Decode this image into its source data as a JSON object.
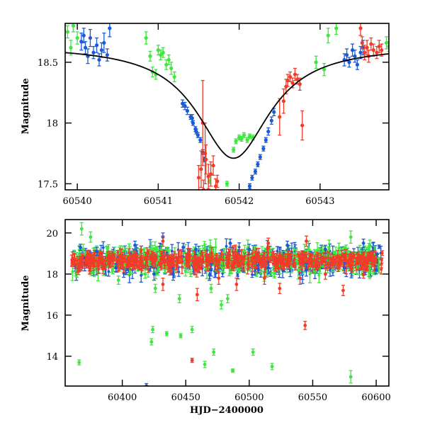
{
  "colors": {
    "blue": "#1a5ad6",
    "red": "#f03c28",
    "green": "#3ee63e",
    "model": "#000000",
    "frame": "#000000"
  },
  "chart_data": [
    {
      "type": "scatter",
      "ylabel": "Magnitude",
      "xlabel": "",
      "xlim": [
        60539.85,
        60543.85
      ],
      "ylim": [
        18.82,
        17.45
      ],
      "y_inverted": true,
      "x_ticks": [
        60540,
        60541,
        60542,
        60543
      ],
      "x_tick_labels": [
        "60540",
        "60541",
        "60542",
        "60543"
      ],
      "y_ticks": [
        17.5,
        18,
        18.5
      ],
      "y_tick_labels": [
        "17.5",
        "18",
        "18.5"
      ],
      "model_curve": {
        "type": "line",
        "peak_x": 60541.93,
        "peak_mag": 17.71,
        "base_mag": 18.64,
        "halfwidth": 0.55
      },
      "series": [
        {
          "color_key": "blue",
          "points": [
            [
              60540.05,
              18.67,
              0.07
            ],
            [
              60540.08,
              18.72,
              0.06
            ],
            [
              60540.1,
              18.62,
              0.05
            ],
            [
              60540.13,
              18.55,
              0.06
            ],
            [
              60540.16,
              18.7,
              0.07
            ],
            [
              60540.2,
              18.58,
              0.05
            ],
            [
              60540.24,
              18.64,
              0.06
            ],
            [
              60540.27,
              18.52,
              0.05
            ],
            [
              60540.3,
              18.6,
              0.06
            ],
            [
              60540.33,
              18.66,
              0.08
            ],
            [
              60540.37,
              18.56,
              0.05
            ],
            [
              60540.4,
              18.78,
              0.07
            ],
            [
              60541.3,
              18.16,
              0.03
            ],
            [
              60541.33,
              18.14,
              0.03
            ],
            [
              60541.36,
              18.1,
              0.03
            ],
            [
              60541.4,
              18.05,
              0.02
            ],
            [
              60541.43,
              18.0,
              0.02
            ],
            [
              60541.46,
              17.95,
              0.02
            ],
            [
              60541.49,
              17.9,
              0.02
            ],
            [
              60541.52,
              17.86,
              0.02
            ],
            [
              60541.42,
              18.04,
              0.03
            ],
            [
              60541.47,
              17.93,
              0.02
            ],
            [
              60541.55,
              17.76,
              0.02
            ],
            [
              60541.57,
              17.7,
              0.02
            ],
            [
              60542.13,
              17.48,
              0.02
            ],
            [
              60542.16,
              17.55,
              0.02
            ],
            [
              60542.2,
              17.6,
              0.02
            ],
            [
              60542.23,
              17.66,
              0.02
            ],
            [
              60542.26,
              17.72,
              0.02
            ],
            [
              60542.3,
              17.79,
              0.02
            ],
            [
              60542.33,
              17.86,
              0.02
            ],
            [
              60542.36,
              17.93,
              0.03
            ],
            [
              60542.4,
              18.02,
              0.03
            ],
            [
              60542.43,
              18.09,
              0.03
            ],
            [
              60543.3,
              18.52,
              0.05
            ],
            [
              60543.33,
              18.56,
              0.05
            ],
            [
              60543.36,
              18.5,
              0.04
            ],
            [
              60543.4,
              18.6,
              0.05
            ],
            [
              60543.43,
              18.55,
              0.05
            ],
            [
              60543.46,
              18.48,
              0.04
            ],
            [
              60543.5,
              18.58,
              0.05
            ],
            [
              60543.53,
              18.62,
              0.06
            ]
          ]
        },
        {
          "color_key": "green",
          "points": [
            [
              60539.88,
              18.75,
              0.05
            ],
            [
              60539.92,
              18.62,
              0.06
            ],
            [
              60539.95,
              18.8,
              0.05
            ],
            [
              60540.0,
              18.7,
              0.05
            ],
            [
              60540.85,
              18.7,
              0.05
            ],
            [
              60540.9,
              18.55,
              0.04
            ],
            [
              60540.93,
              18.42,
              0.04
            ],
            [
              60540.97,
              18.4,
              0.04
            ],
            [
              60541.0,
              18.6,
              0.04
            ],
            [
              60541.03,
              18.56,
              0.04
            ],
            [
              60541.06,
              18.58,
              0.04
            ],
            [
              60541.1,
              18.48,
              0.04
            ],
            [
              60541.13,
              18.52,
              0.04
            ],
            [
              60541.16,
              18.45,
              0.05
            ],
            [
              60541.2,
              18.38,
              0.04
            ],
            [
              60541.63,
              17.52,
              0.02
            ],
            [
              60541.93,
              17.78,
              0.02
            ],
            [
              60541.96,
              17.85,
              0.02
            ],
            [
              60542.0,
              17.88,
              0.02
            ],
            [
              60542.03,
              17.87,
              0.02
            ],
            [
              60542.06,
              17.9,
              0.02
            ],
            [
              60542.1,
              17.86,
              0.02
            ],
            [
              60542.13,
              17.89,
              0.02
            ],
            [
              60542.17,
              17.88,
              0.02
            ],
            [
              60541.85,
              17.5,
              0.02
            ],
            [
              60542.95,
              18.5,
              0.05
            ],
            [
              60543.05,
              18.44,
              0.05
            ],
            [
              60543.1,
              18.72,
              0.06
            ],
            [
              60543.2,
              18.78,
              0.05
            ],
            [
              60543.82,
              18.66,
              0.05
            ],
            [
              60543.85,
              18.63,
              0.04
            ]
          ]
        },
        {
          "color_key": "red",
          "points": [
            [
              60541.5,
              17.55,
              0.1
            ],
            [
              60541.53,
              17.62,
              0.15
            ],
            [
              60541.56,
              17.45,
              0.08
            ],
            [
              60541.59,
              17.7,
              0.12
            ],
            [
              60541.62,
              17.56,
              0.1
            ],
            [
              60541.65,
              17.58,
              0.1
            ],
            [
              60541.68,
              17.65,
              0.08
            ],
            [
              60541.71,
              17.48,
              0.06
            ],
            [
              60541.73,
              17.52,
              0.05
            ],
            [
              60541.55,
              18.0,
              0.35
            ],
            [
              60541.58,
              17.75,
              0.25
            ],
            [
              60542.5,
              18.05,
              0.15
            ],
            [
              60542.55,
              18.18,
              0.1
            ],
            [
              60542.58,
              18.3,
              0.06
            ],
            [
              60542.6,
              18.35,
              0.05
            ],
            [
              60542.63,
              18.38,
              0.04
            ],
            [
              60542.66,
              18.33,
              0.04
            ],
            [
              60542.69,
              18.4,
              0.05
            ],
            [
              60542.72,
              18.36,
              0.04
            ],
            [
              60542.75,
              18.32,
              0.05
            ],
            [
              60542.78,
              17.98,
              0.12
            ],
            [
              60543.55,
              18.58,
              0.06
            ],
            [
              60543.58,
              18.62,
              0.06
            ],
            [
              60543.6,
              18.55,
              0.05
            ],
            [
              60543.63,
              18.65,
              0.05
            ],
            [
              60543.66,
              18.6,
              0.05
            ],
            [
              60543.7,
              18.58,
              0.05
            ],
            [
              60543.73,
              18.63,
              0.05
            ],
            [
              60543.76,
              18.6,
              0.05
            ],
            [
              60543.5,
              18.78,
              0.06
            ],
            [
              60543.52,
              18.66,
              0.05
            ]
          ]
        }
      ]
    },
    {
      "type": "scatter",
      "ylabel": "Magnitude",
      "xlabel": "HJD−2400000",
      "xlim": [
        60355,
        60610
      ],
      "ylim": [
        20.65,
        12.55
      ],
      "y_inverted": true,
      "x_ticks": [
        60400,
        60450,
        60500,
        60550,
        60600
      ],
      "x_tick_labels": [
        "60400",
        "60450",
        "60500",
        "60550",
        "60600"
      ],
      "y_ticks": [
        14,
        16,
        18,
        20
      ],
      "y_tick_labels": [
        "14",
        "16",
        "18",
        "20"
      ],
      "baseline_mag": 18.65,
      "x_start": 60360,
      "x_end": 60605,
      "series": [
        {
          "color_key": "blue",
          "points": [
            [
              60419,
              12.55,
              0.12
            ],
            [
              60367,
              19.3,
              0.15
            ],
            [
              60380,
              19.1,
              0.2
            ],
            [
              60395,
              18.3,
              0.2
            ],
            [
              60410,
              19.4,
              0.2
            ],
            [
              60425,
              18.0,
              0.3
            ],
            [
              60432,
              19.8,
              0.2
            ],
            [
              60440,
              18.0,
              0.3
            ],
            [
              60448,
              19.3,
              0.2
            ],
            [
              60458,
              19.2,
              0.25
            ],
            [
              60470,
              18.2,
              0.3
            ],
            [
              60485,
              19.5,
              0.2
            ],
            [
              60500,
              19.2,
              0.25
            ],
            [
              60515,
              18.3,
              0.3
            ],
            [
              60530,
              19.4,
              0.2
            ],
            [
              60545,
              18.2,
              0.3
            ],
            [
              60560,
              19.2,
              0.2
            ],
            [
              60575,
              18.3,
              0.25
            ],
            [
              60590,
              19.5,
              0.2
            ],
            [
              60600,
              18.2,
              0.2
            ]
          ]
        },
        {
          "color_key": "green",
          "points": [
            [
              60366,
              13.7,
              0.12
            ],
            [
              60423,
              14.7,
              0.15
            ],
            [
              60424,
              15.3,
              0.15
            ],
            [
              60435,
              15.1,
              0.1
            ],
            [
              60446,
              15.0,
              0.1
            ],
            [
              60455,
              15.3,
              0.15
            ],
            [
              60465,
              13.6,
              0.15
            ],
            [
              60472,
              14.2,
              0.15
            ],
            [
              60487,
              13.3,
              0.08
            ],
            [
              60503,
              14.2,
              0.15
            ],
            [
              60518,
              13.5,
              0.15
            ],
            [
              60580,
              13.0,
              0.3
            ],
            [
              60418,
              18.0,
              0.2
            ],
            [
              60426,
              17.3,
              0.2
            ],
            [
              60445,
              16.8,
              0.2
            ],
            [
              60478,
              16.5,
              0.2
            ],
            [
              60483,
              16.8,
              0.2
            ],
            [
              60375,
              19.8,
              0.25
            ],
            [
              60368,
              20.2,
              0.3
            ],
            [
              60397,
              17.7,
              0.2
            ],
            [
              60580,
              19.8,
              0.3
            ],
            [
              60595,
              19.4,
              0.25
            ],
            [
              60470,
              17.3,
              0.2
            ]
          ]
        },
        {
          "color_key": "red",
          "points": [
            [
              60455,
              13.8,
              0.1
            ],
            [
              60544,
              15.5,
              0.2
            ],
            [
              60432,
              17.5,
              0.3
            ],
            [
              60459,
              17.0,
              0.3
            ],
            [
              60476,
              17.8,
              0.3
            ],
            [
              60490,
              17.5,
              0.3
            ],
            [
              60512,
              17.8,
              0.3
            ],
            [
              60524,
              17.3,
              0.25
            ],
            [
              60540,
              17.8,
              0.3
            ],
            [
              60560,
              18.0,
              0.25
            ],
            [
              60574,
              17.2,
              0.25
            ],
            [
              60590,
              18.0,
              0.2
            ],
            [
              60545,
              19.6,
              0.25
            ],
            [
              60515,
              19.5,
              0.25
            ],
            [
              60432,
              19.6,
              0.25
            ]
          ]
        }
      ]
    }
  ]
}
